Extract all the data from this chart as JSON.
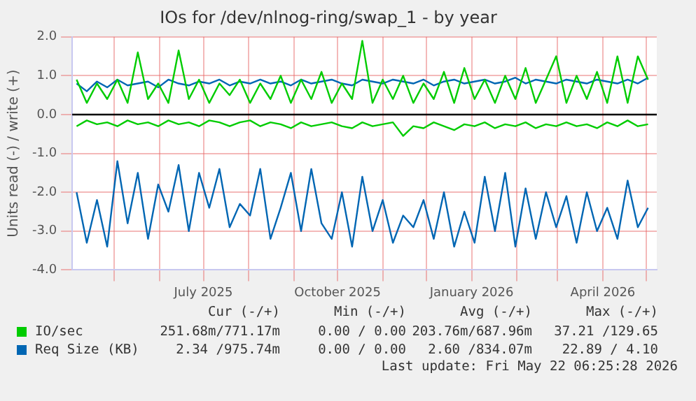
{
  "chart_data": {
    "type": "line",
    "title": "IOs for /dev/nlnog-ring/swap_1 - by year",
    "ylabel": "Units read (-) / write (+)",
    "x": [
      "2025-04-05",
      "2025-04-12",
      "2025-04-19",
      "2025-04-26",
      "2025-05-03",
      "2025-05-10",
      "2025-05-17",
      "2025-05-24",
      "2025-05-31",
      "2025-06-07",
      "2025-06-14",
      "2025-06-21",
      "2025-06-28",
      "2025-07-05",
      "2025-07-12",
      "2025-07-19",
      "2025-07-26",
      "2025-08-02",
      "2025-08-09",
      "2025-08-16",
      "2025-08-23",
      "2025-08-30",
      "2025-09-06",
      "2025-09-13",
      "2025-09-20",
      "2025-09-27",
      "2025-10-04",
      "2025-10-11",
      "2025-10-18",
      "2025-10-25",
      "2025-11-01",
      "2025-11-08",
      "2025-11-15",
      "2025-11-22",
      "2025-11-29",
      "2025-12-06",
      "2025-12-13",
      "2025-12-20",
      "2025-12-27",
      "2026-01-03",
      "2026-01-10",
      "2026-01-17",
      "2026-01-24",
      "2026-01-31",
      "2026-02-07",
      "2026-02-14",
      "2026-02-21",
      "2026-02-28",
      "2026-03-07",
      "2026-03-14",
      "2026-03-21",
      "2026-03-28",
      "2026-04-04",
      "2026-04-11",
      "2026-04-18",
      "2026-04-25",
      "2026-05-02"
    ],
    "series": [
      {
        "name": "IO/sec",
        "color": "#00cc00",
        "values": [
          0.9,
          0.3,
          0.8,
          0.4,
          0.9,
          0.3,
          1.6,
          0.4,
          0.8,
          0.3,
          1.65,
          0.4,
          0.9,
          0.3,
          0.8,
          0.5,
          0.9,
          0.3,
          0.8,
          0.4,
          1.0,
          0.3,
          0.9,
          0.4,
          1.1,
          0.3,
          0.8,
          0.4,
          1.9,
          0.3,
          0.9,
          0.4,
          1.0,
          0.3,
          0.8,
          0.4,
          1.1,
          0.3,
          1.2,
          0.4,
          0.9,
          0.3,
          1.0,
          0.4,
          1.2,
          0.3,
          0.9,
          1.5,
          0.3,
          1.0,
          0.4,
          1.1,
          0.3,
          1.5,
          0.3,
          1.5,
          0.9
        ]
      },
      {
        "color": "#00cc00",
        "values": [
          -0.3,
          -0.15,
          -0.25,
          -0.2,
          -0.3,
          -0.15,
          -0.25,
          -0.2,
          -0.3,
          -0.15,
          -0.25,
          -0.2,
          -0.3,
          -0.15,
          -0.2,
          -0.3,
          -0.2,
          -0.15,
          -0.3,
          -0.2,
          -0.25,
          -0.35,
          -0.2,
          -0.3,
          -0.25,
          -0.2,
          -0.3,
          -0.35,
          -0.2,
          -0.3,
          -0.25,
          -0.2,
          -0.55,
          -0.3,
          -0.35,
          -0.2,
          -0.3,
          -0.4,
          -0.25,
          -0.3,
          -0.2,
          -0.35,
          -0.25,
          -0.3,
          -0.2,
          -0.35,
          -0.25,
          -0.3,
          -0.2,
          -0.3,
          -0.25,
          -0.35,
          -0.2,
          -0.3,
          -0.15,
          -0.3,
          -0.25
        ]
      },
      {
        "name": "Req Size (KB)",
        "color": "#0066b3",
        "values": [
          0.8,
          0.6,
          0.85,
          0.7,
          0.9,
          0.75,
          0.8,
          0.85,
          0.7,
          0.9,
          0.8,
          0.75,
          0.85,
          0.8,
          0.9,
          0.75,
          0.85,
          0.8,
          0.9,
          0.8,
          0.85,
          0.75,
          0.9,
          0.8,
          0.85,
          0.9,
          0.8,
          0.75,
          0.9,
          0.85,
          0.8,
          0.9,
          0.85,
          0.8,
          0.9,
          0.75,
          0.85,
          0.9,
          0.8,
          0.85,
          0.9,
          0.8,
          0.85,
          0.95,
          0.8,
          0.9,
          0.85,
          0.8,
          0.9,
          0.85,
          0.8,
          0.9,
          0.85,
          0.8,
          0.9,
          0.8,
          0.95
        ]
      },
      {
        "color": "#0066b3",
        "values": [
          -2.0,
          -3.3,
          -2.2,
          -3.4,
          -1.2,
          -2.8,
          -1.5,
          -3.2,
          -1.8,
          -2.5,
          -1.3,
          -3.0,
          -1.5,
          -2.4,
          -1.4,
          -2.9,
          -2.3,
          -2.6,
          -1.4,
          -3.2,
          -2.4,
          -1.5,
          -3.0,
          -1.4,
          -2.8,
          -3.2,
          -2.0,
          -3.4,
          -1.6,
          -3.0,
          -2.2,
          -3.3,
          -2.6,
          -2.9,
          -2.2,
          -3.2,
          -2.0,
          -3.4,
          -2.5,
          -3.3,
          -1.6,
          -3.0,
          -1.5,
          -3.4,
          -1.9,
          -3.2,
          -2.0,
          -2.9,
          -2.1,
          -3.3,
          -2.0,
          -3.0,
          -2.4,
          -3.2,
          -1.7,
          -2.9,
          -2.4
        ]
      }
    ],
    "xlim": [
      "2025-04-02",
      "2026-05-08"
    ],
    "xticks": [
      {
        "value": "2025-05-01",
        "label": null
      },
      {
        "value": "2025-06-01",
        "label": null
      },
      {
        "value": "2025-07-01",
        "label": "July 2025"
      },
      {
        "value": "2025-08-01",
        "label": null
      },
      {
        "value": "2025-09-01",
        "label": null
      },
      {
        "value": "2025-10-01",
        "label": "October 2025"
      },
      {
        "value": "2025-11-01",
        "label": null
      },
      {
        "value": "2025-12-01",
        "label": null
      },
      {
        "value": "2026-01-01",
        "label": "January 2026"
      },
      {
        "value": "2026-02-01",
        "label": null
      },
      {
        "value": "2026-03-01",
        "label": null
      },
      {
        "value": "2026-04-01",
        "label": "April 2026"
      },
      {
        "value": "2026-05-01",
        "label": null
      }
    ],
    "ylim": [
      -4,
      2
    ],
    "yticks": [
      {
        "value": -4,
        "label": "-4.0"
      },
      {
        "value": -3,
        "label": "-3.0"
      },
      {
        "value": -2,
        "label": "-2.0"
      },
      {
        "value": -1,
        "label": "-1.0"
      },
      {
        "value": 0,
        "label": "0.0"
      },
      {
        "value": 1,
        "label": "1.0"
      },
      {
        "value": 2,
        "label": "2.0"
      }
    ],
    "grid": true,
    "ref_lines": [
      {
        "axis": "y",
        "value": 0,
        "color": "#000000"
      }
    ],
    "legend": "bottom",
    "annotations": [
      "Cur (-/+)",
      "Min (-/+)",
      "Avg (-/+)",
      "Max (-/+)",
      "251.68m/771.17m",
      "0.00 / 0.00",
      "203.76m/687.96m",
      "37.21 /129.65",
      "2.34 /975.74m",
      "0.00 / 0.00",
      "2.60 /834.07m",
      "22.89 / 4.10",
      "Last update: Fri May 22 06:25:28 2026"
    ]
  }
}
